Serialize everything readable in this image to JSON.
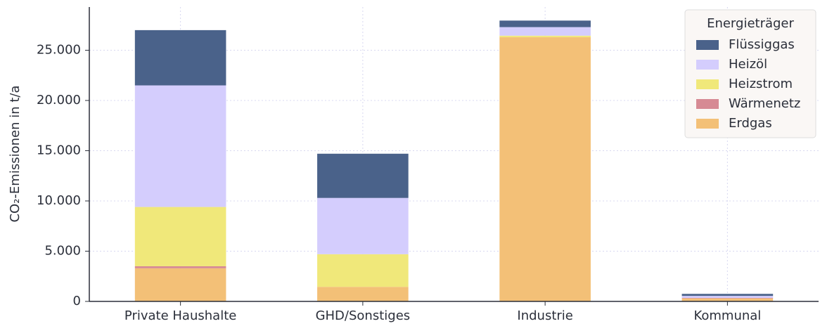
{
  "chart_data": {
    "type": "stacked_bar",
    "y_label": "CO₂-Emissionen in t/a",
    "categories": [
      "Private Haushalte",
      "GHD/Sonstiges",
      "Industrie",
      "Kommunal"
    ],
    "series": [
      {
        "name": "Erdgas",
        "color": "#f3c077",
        "values": [
          3300,
          1450,
          26300,
          300
        ]
      },
      {
        "name": "Wärmenetz",
        "color": "#d68a94",
        "values": [
          200,
          0,
          0,
          50
        ]
      },
      {
        "name": "Heizstrom",
        "color": "#f0e87a",
        "values": [
          5900,
          3250,
          150,
          0
        ]
      },
      {
        "name": "Heizöl",
        "color": "#d4cdfd",
        "values": [
          12100,
          5600,
          850,
          200
        ]
      },
      {
        "name": "Flüssiggas",
        "color": "#4a628a",
        "values": [
          5500,
          4400,
          650,
          200
        ]
      }
    ],
    "ylim": [
      0,
      29300
    ],
    "yticks": [
      0,
      {
        "value": 5000,
        "label": "5.000"
      },
      {
        "value": 10000,
        "label": "10.000"
      },
      {
        "value": 15000,
        "label": "15.000"
      },
      {
        "value": 20000,
        "label": "20.000"
      },
      {
        "value": 25000,
        "label": "25.000"
      }
    ],
    "grid": true,
    "legend": {
      "title": "Energieträger",
      "position": "upper right"
    }
  }
}
